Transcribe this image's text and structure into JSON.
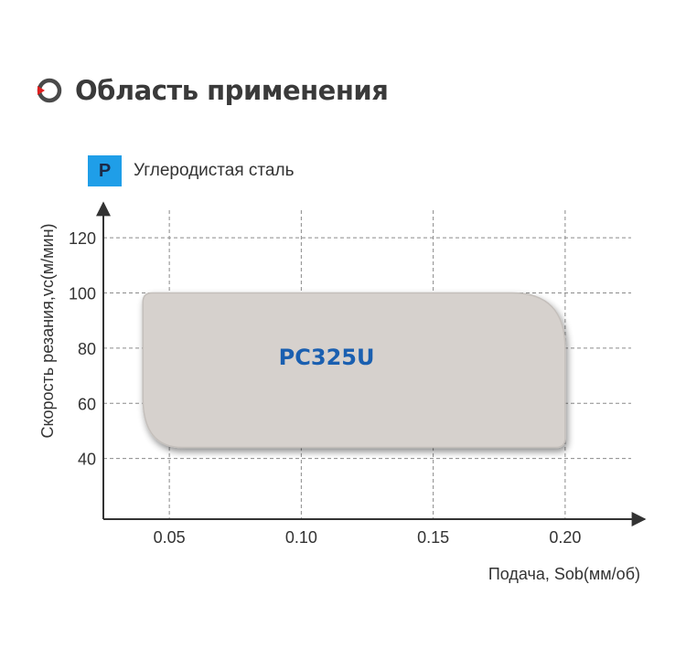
{
  "header": {
    "title": "Область применения",
    "icon": "power-ring-icon",
    "icon_colors": {
      "ring": "#4a4a4a",
      "arrow": "#e02020"
    }
  },
  "material": {
    "badge": "P",
    "label": "Углеродистая сталь",
    "badge_color": "#1f9ee8"
  },
  "chart_data": {
    "type": "area",
    "xlabel": "Подача, Sob(мм/об)",
    "ylabel": "Скорость резания,vc(м/мин)",
    "xlim": [
      0.025,
      0.225
    ],
    "ylim": [
      18,
      130
    ],
    "x_ticks": [
      0.05,
      0.1,
      0.15,
      0.2
    ],
    "x_tick_labels": [
      "0.05",
      "0.10",
      "0.15",
      "0.20"
    ],
    "y_ticks": [
      40,
      60,
      80,
      100,
      120
    ],
    "y_tick_labels": [
      "40",
      "60",
      "80",
      "100",
      "120"
    ],
    "grid": true,
    "regions": [
      {
        "name": "PC325U",
        "fill": "#d6d1cd",
        "outline": [
          [
            0.04,
            100
          ],
          [
            0.18,
            100
          ],
          [
            0.2,
            80
          ],
          [
            0.2,
            44
          ],
          [
            0.055,
            44
          ],
          [
            0.04,
            62
          ]
        ]
      }
    ]
  }
}
